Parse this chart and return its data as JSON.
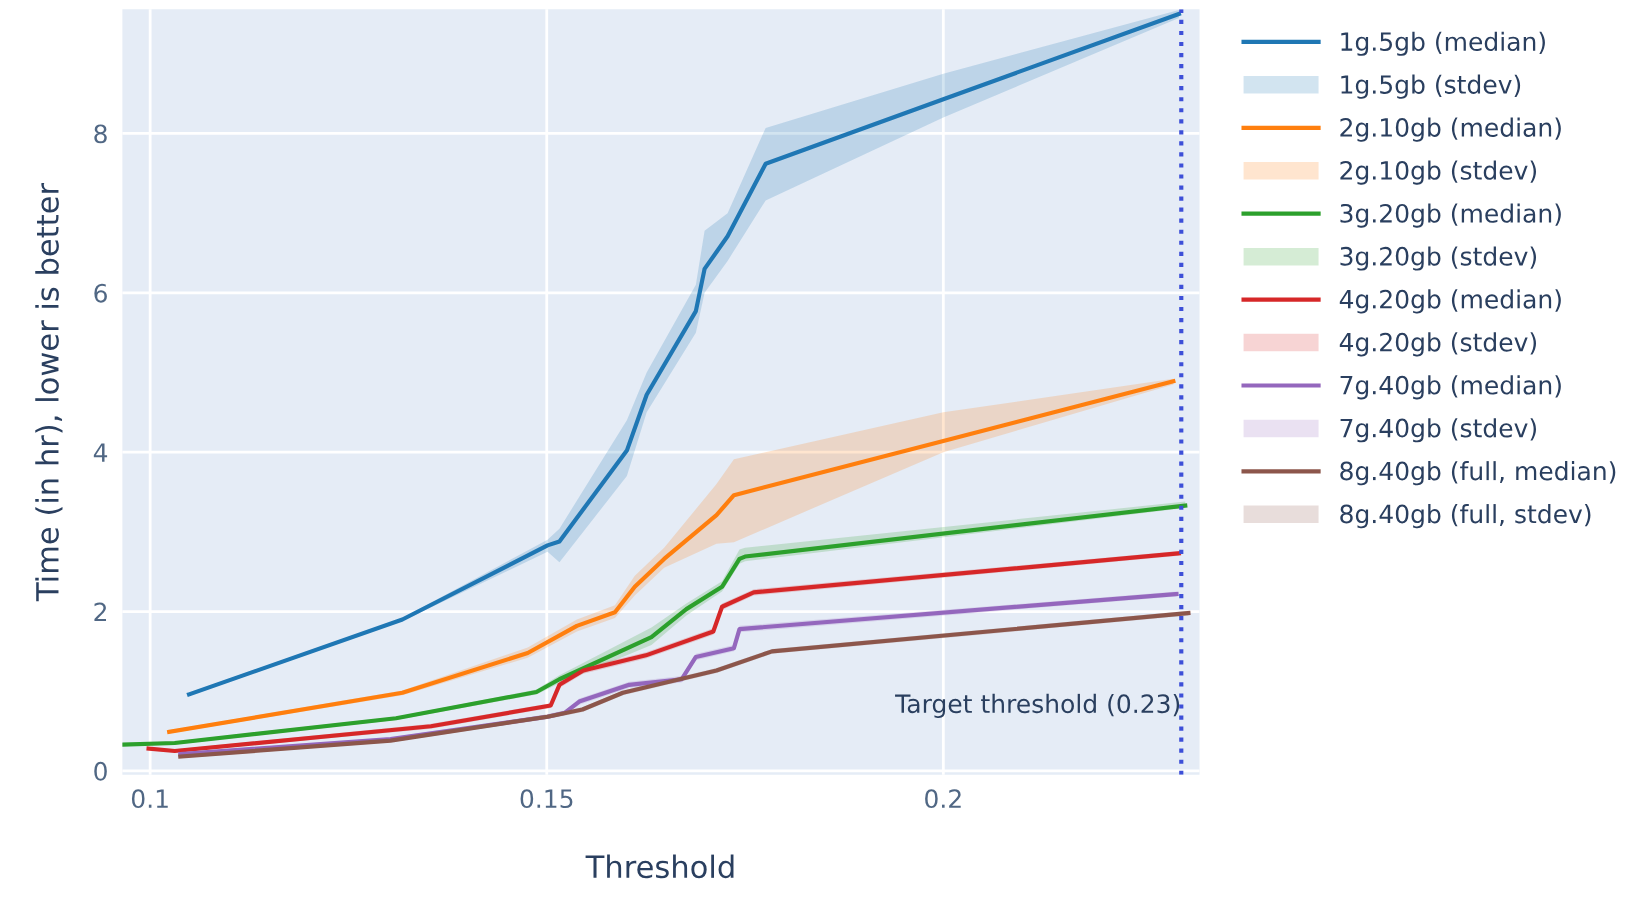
{
  "chart_data": {
    "type": "line",
    "xlabel": "Threshold",
    "ylabel": "Time (in hr), lower is better",
    "xlim": [
      0.0965,
      0.2323
    ],
    "ylim": [
      -0.05,
      9.56
    ],
    "xticks": [
      0.1,
      0.15,
      0.2
    ],
    "yticks": [
      0,
      2,
      4,
      6,
      8
    ],
    "grid": true,
    "legend": "right",
    "line_style": "solid",
    "marker": "none",
    "ref_lines": [
      {
        "axis": "x",
        "value": 0.23,
        "label": "Target threshold (0.23)",
        "color": "#3d4fd8",
        "line_style": "dotted"
      }
    ],
    "series": [
      {
        "name": "1g.5gb (median)",
        "color": "#1f77b4",
        "x": [
          0.1049,
          0.1318,
          0.1501,
          0.1516,
          0.1601,
          0.1626,
          0.1688,
          0.1699,
          0.1728,
          0.1776,
          0.2,
          0.2297
        ],
        "values": [
          0.96,
          1.9,
          2.83,
          2.88,
          4.02,
          4.72,
          5.77,
          6.3,
          6.71,
          7.62,
          8.43,
          9.5
        ],
        "lower": [
          0.94,
          1.88,
          2.75,
          2.62,
          3.7,
          4.5,
          5.5,
          6.0,
          6.4,
          7.16,
          8.2,
          9.45
        ],
        "upper": [
          0.98,
          1.92,
          2.9,
          3.04,
          4.4,
          5.0,
          6.1,
          6.78,
          7.0,
          8.07,
          8.75,
          9.55
        ]
      },
      {
        "name": "1g.5gb (stdev)",
        "type": "area",
        "color": "#1f77b4"
      },
      {
        "name": "2g.10gb (median)",
        "color": "#ff7f0e",
        "x": [
          0.1024,
          0.1318,
          0.1476,
          0.1538,
          0.1586,
          0.1611,
          0.1648,
          0.1714,
          0.1736,
          0.2,
          0.229
        ],
        "values": [
          0.49,
          0.98,
          1.48,
          1.82,
          1.99,
          2.31,
          2.66,
          3.21,
          3.46,
          4.14,
          4.89
        ],
        "lower": [
          0.47,
          0.95,
          1.42,
          1.75,
          1.92,
          2.2,
          2.55,
          2.85,
          2.87,
          4.0,
          4.85
        ],
        "upper": [
          0.51,
          1.01,
          1.55,
          1.9,
          2.08,
          2.45,
          2.8,
          3.6,
          3.91,
          4.5,
          4.92
        ]
      },
      {
        "name": "2g.10gb (stdev)",
        "type": "area",
        "color": "#ff7f0e"
      },
      {
        "name": "3g.20gb (median)",
        "color": "#2ca02c",
        "x": [
          0.0965,
          0.1031,
          0.131,
          0.1487,
          0.1516,
          0.1632,
          0.1676,
          0.1721,
          0.1743,
          0.175,
          0.2305
        ],
        "values": [
          0.33,
          0.35,
          0.66,
          0.99,
          1.15,
          1.68,
          2.03,
          2.31,
          2.66,
          2.69,
          3.33
        ],
        "lower": [
          0.31,
          0.33,
          0.64,
          0.96,
          1.1,
          1.58,
          1.95,
          2.25,
          2.6,
          2.63,
          3.3
        ],
        "upper": [
          0.35,
          0.37,
          0.68,
          1.02,
          1.2,
          1.8,
          2.1,
          2.38,
          2.78,
          2.8,
          3.38
        ]
      },
      {
        "name": "3g.20gb (stdev)",
        "type": "area",
        "color": "#2ca02c"
      },
      {
        "name": "4g.20gb (median)",
        "color": "#d62728",
        "x": [
          0.0998,
          0.1031,
          0.1354,
          0.1505,
          0.1516,
          0.1546,
          0.1625,
          0.171,
          0.1721,
          0.1761,
          0.2297
        ],
        "values": [
          0.28,
          0.25,
          0.56,
          0.82,
          1.08,
          1.26,
          1.45,
          1.75,
          2.06,
          2.24,
          2.73
        ],
        "lower": [
          0.26,
          0.23,
          0.53,
          0.79,
          1.04,
          1.22,
          1.41,
          1.71,
          2.02,
          2.2,
          2.7
        ],
        "upper": [
          0.3,
          0.27,
          0.59,
          0.85,
          1.12,
          1.3,
          1.49,
          1.79,
          2.1,
          2.28,
          2.76
        ]
      },
      {
        "name": "4g.20gb (stdev)",
        "type": "area",
        "color": "#d62728"
      },
      {
        "name": "7g.40gb (median)",
        "color": "#9467bd",
        "x": [
          0.1038,
          0.1303,
          0.1501,
          0.1523,
          0.1541,
          0.1604,
          0.167,
          0.1688,
          0.1736,
          0.1743,
          0.2294
        ],
        "values": [
          0.21,
          0.4,
          0.68,
          0.73,
          0.87,
          1.08,
          1.15,
          1.43,
          1.54,
          1.78,
          2.22
        ],
        "lower": [
          0.19,
          0.38,
          0.65,
          0.7,
          0.83,
          1.04,
          1.11,
          1.39,
          1.5,
          1.74,
          2.19
        ],
        "upper": [
          0.23,
          0.42,
          0.71,
          0.76,
          0.91,
          1.12,
          1.19,
          1.47,
          1.58,
          1.82,
          2.25
        ]
      },
      {
        "name": "7g.40gb (stdev)",
        "type": "area",
        "color": "#9467bd"
      },
      {
        "name": "8g.40gb (full, median)",
        "color": "#8c564b",
        "x": [
          0.1038,
          0.1303,
          0.1501,
          0.1545,
          0.1596,
          0.1714,
          0.1784,
          0.2309
        ],
        "values": [
          0.18,
          0.38,
          0.68,
          0.77,
          0.98,
          1.26,
          1.5,
          1.98
        ],
        "lower": [
          0.16,
          0.36,
          0.65,
          0.74,
          0.95,
          1.23,
          1.47,
          1.95
        ],
        "upper": [
          0.2,
          0.4,
          0.71,
          0.8,
          1.01,
          1.29,
          1.53,
          2.01
        ]
      },
      {
        "name": "8g.40gb (full, stdev)",
        "type": "area",
        "color": "#8c564b"
      }
    ]
  }
}
